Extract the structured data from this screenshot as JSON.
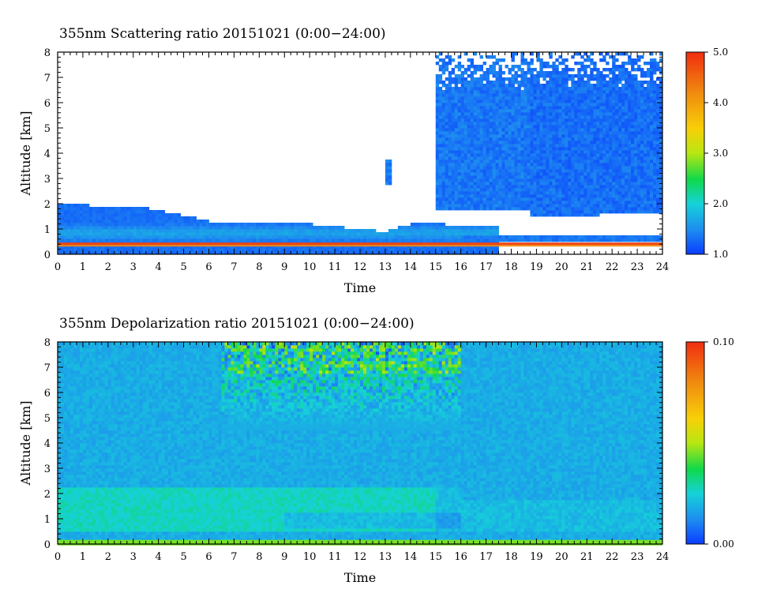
{
  "chart_data": [
    {
      "type": "heatmap",
      "title": "355nm Scattering ratio  20151021 (0:00−24:00)",
      "xlabel": "Time",
      "ylabel": "Altitude [km]",
      "xlim": [
        0,
        24
      ],
      "ylim": [
        0,
        8
      ],
      "x_ticks": [
        "0",
        "1",
        "2",
        "3",
        "4",
        "5",
        "6",
        "7",
        "8",
        "9",
        "10",
        "11",
        "12",
        "13",
        "14",
        "15",
        "16",
        "17",
        "18",
        "19",
        "20",
        "21",
        "22",
        "23",
        "24"
      ],
      "y_ticks": [
        "0",
        "1",
        "2",
        "3",
        "4",
        "5",
        "6",
        "7",
        "8"
      ],
      "colorbar": {
        "range": [
          1.0,
          5.0
        ],
        "ticks": [
          "1.0",
          "2.0",
          "3.0",
          "4.0",
          "5.0"
        ]
      },
      "features": {
        "surface_layer_altitude_km": 0.4,
        "surface_layer_value": 4.8,
        "aerosol_layer_top_km": {
          "time": [
            0,
            1,
            2,
            3,
            4,
            5,
            6,
            7,
            8,
            9,
            10,
            11,
            12,
            13,
            14,
            15,
            16
          ],
          "top": [
            2.0,
            1.95,
            1.9,
            1.9,
            1.75,
            1.55,
            1.3,
            1.3,
            1.3,
            1.3,
            1.2,
            1.1,
            1.0,
            0.9,
            1.2,
            1.25,
            1.1
          ]
        },
        "cloud_regions": [
          {
            "time_start": 15.0,
            "time_end": 18.8,
            "alt_base_km": 1.7,
            "alt_top_km": 8.0,
            "mean_value": 1.35
          },
          {
            "time_start": 18.8,
            "time_end": 21.5,
            "alt_base_km": 1.5,
            "alt_top_km": 8.0,
            "mean_value": 1.3
          },
          {
            "time_start": 21.5,
            "time_end": 24.0,
            "alt_base_km": 1.6,
            "alt_top_km": 8.0,
            "mean_value": 1.3
          },
          {
            "time_start": 13.0,
            "time_end": 13.3,
            "alt_base_km": 2.8,
            "alt_top_km": 3.7,
            "mean_value": 1.4
          }
        ]
      }
    },
    {
      "type": "heatmap",
      "title": "355nm Depolarization ratio  20151021 (0:00−24:00)",
      "xlabel": "Time",
      "ylabel": "Altitude [km]",
      "xlim": [
        0,
        24
      ],
      "ylim": [
        0,
        8
      ],
      "x_ticks": [
        "0",
        "1",
        "2",
        "3",
        "4",
        "5",
        "6",
        "7",
        "8",
        "9",
        "10",
        "11",
        "12",
        "13",
        "14",
        "15",
        "16",
        "17",
        "18",
        "19",
        "20",
        "21",
        "22",
        "23",
        "24"
      ],
      "y_ticks": [
        "0",
        "1",
        "2",
        "3",
        "4",
        "5",
        "6",
        "7",
        "8"
      ],
      "colorbar": {
        "range": [
          0.0,
          0.1
        ],
        "ticks": [
          "0.00",
          "0.10"
        ]
      },
      "features": {
        "background_value": 0.018,
        "surface_layer_value": 0.045,
        "aerosol_band": {
          "alt_base_km": 0.5,
          "alt_top_km": 2.2,
          "value": 0.027
        },
        "noisy_region": {
          "time_start": 6.5,
          "time_end": 16.0,
          "alt_base_km": 4.5,
          "alt_top_km": 8.0,
          "peak_value": 0.05
        }
      }
    }
  ]
}
